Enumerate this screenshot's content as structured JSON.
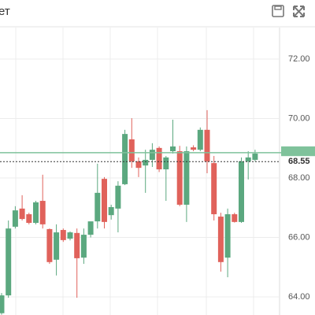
{
  "chart_data": {
    "type": "candlestick",
    "title": "ет",
    "open": [
      63.45,
      64.05,
      66.36,
      66.97,
      66.78,
      66.49,
      67.23,
      66.28,
      65.25,
      66.25,
      65.96,
      66.15,
      65.32,
      66.09,
      66.54,
      67.97,
      66.75,
      66.97,
      67.79,
      69.3,
      68.56,
      68.42,
      68.61,
      69.01,
      68.29,
      68.9,
      68.9,
      67.1,
      69.03,
      68.95,
      69.62,
      68.5,
      66.7,
      65.32,
      66.78,
      66.52,
      68.56,
      68.61
    ],
    "high": [
      64.13,
      66.57,
      67.05,
      67.42,
      66.83,
      67.23,
      68.11,
      66.3,
      66.44,
      66.3,
      66.2,
      66.3,
      66.3,
      66.5,
      68.48,
      68.03,
      67.1,
      67.89,
      69.62,
      70.01,
      68.69,
      68.95,
      69.17,
      69.06,
      68.74,
      69.96,
      69.08,
      69.06,
      69.1,
      69.7,
      70.28,
      68.74,
      66.83,
      66.97,
      66.83,
      68.69,
      68.9,
      68.95
    ],
    "low": [
      63.4,
      63.97,
      66.3,
      66.57,
      66.44,
      66.44,
      66.3,
      65.11,
      64.72,
      65.85,
      65.9,
      63.97,
      65.11,
      66.0,
      66.3,
      66.3,
      66.6,
      66.17,
      67.76,
      68.34,
      68.03,
      67.5,
      68.37,
      68.2,
      67.23,
      68.82,
      67.05,
      66.52,
      68.9,
      68.9,
      68.16,
      66.57,
      64.85,
      64.66,
      66.5,
      66.49,
      67.95,
      68.56
    ],
    "close": [
      64.05,
      66.3,
      66.91,
      66.62,
      66.49,
      67.18,
      66.44,
      65.17,
      66.17,
      65.91,
      66.17,
      65.3,
      66.09,
      66.54,
      67.5,
      66.52,
      67.02,
      67.74,
      69.48,
      68.56,
      68.34,
      68.61,
      68.95,
      68.29,
      68.69,
      69.06,
      67.1,
      68.9,
      68.95,
      69.62,
      68.56,
      66.78,
      65.17,
      66.78,
      66.52,
      68.56,
      68.69,
      68.82
    ],
    "up_color": "#5ba87f",
    "down_color": "#e0625b",
    "ylim": [
      63.39,
      73.06
    ],
    "yticks": [
      {
        "value": 64,
        "label": "64.00"
      },
      {
        "value": 66,
        "label": "66.00"
      },
      {
        "value": 68,
        "label": "68.00"
      },
      {
        "value": 70,
        "label": "70.00"
      },
      {
        "value": 72,
        "label": "72.00"
      }
    ],
    "grid": true,
    "price_line": {
      "value": 68.85,
      "color": "#7fc29b"
    },
    "current_price": {
      "value": 68.55,
      "label": "68.55"
    }
  }
}
